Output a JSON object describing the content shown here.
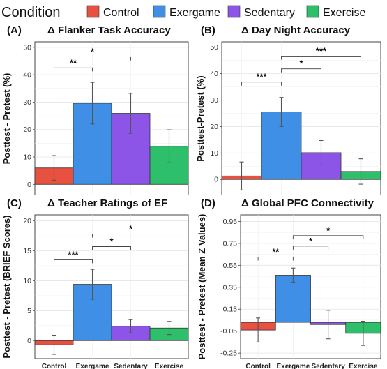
{
  "legend": {
    "title": "Condition",
    "items": [
      {
        "label": "Control",
        "color": "#e8503f"
      },
      {
        "label": "Exergame",
        "color": "#3f8fe6"
      },
      {
        "label": "Sedentary",
        "color": "#8d54e8"
      },
      {
        "label": "Exercise",
        "color": "#2dbf6a"
      }
    ]
  },
  "chart_data": [
    {
      "type": "bar",
      "panel_label": "(A)",
      "title": "Δ Flanker Task Accuracy",
      "ylabel": "Posttest - Pretest (%)",
      "xlabel": "",
      "categories": [
        "Control",
        "Exergame",
        "Sedentary",
        "Exercise"
      ],
      "show_xticks": false,
      "values": [
        6,
        29.6,
        25.9,
        13.9
      ],
      "errors": [
        4.5,
        7.6,
        7.3,
        6
      ],
      "ylim": [
        -4,
        52
      ],
      "yticks": [
        0,
        10,
        20,
        30,
        40,
        50
      ],
      "ytick_labels": [
        "0",
        "10",
        "20",
        "30",
        "40",
        "50"
      ],
      "brackets": [
        {
          "from": 0,
          "to": 1,
          "label": "**",
          "y": 42.5
        },
        {
          "from": 0,
          "to": 2,
          "label": "*",
          "y": 46.5
        }
      ]
    },
    {
      "type": "bar",
      "panel_label": "(B)",
      "title": "Δ Day Night Accuracy",
      "ylabel": "Posttest-Pretest (%)",
      "xlabel": "",
      "categories": [
        "Control",
        "Exergame",
        "Sedentary",
        "Exercise"
      ],
      "show_xticks": false,
      "values": [
        1.3,
        25.5,
        10.1,
        3
      ],
      "errors": [
        5.3,
        5.5,
        4.6,
        4.8
      ],
      "ylim": [
        -6,
        52
      ],
      "yticks": [
        0,
        10,
        20,
        30,
        40,
        50
      ],
      "ytick_labels": [
        "0",
        "10",
        "20",
        "30",
        "40",
        "50"
      ],
      "brackets": [
        {
          "from": 0,
          "to": 1,
          "label": "***",
          "y": 36.8
        },
        {
          "from": 1,
          "to": 2,
          "label": "*",
          "y": 41.8
        },
        {
          "from": 1,
          "to": 3,
          "label": "***",
          "y": 46.6
        }
      ]
    },
    {
      "type": "bar",
      "panel_label": "(C)",
      "title": "Δ Teacher Ratings of EF",
      "ylabel": "Posttest - Pretest (BRIEF Scores)",
      "xlabel": "",
      "categories": [
        "Control",
        "Exergame",
        "Sedentary",
        "Exercise"
      ],
      "show_xticks": true,
      "values": [
        -0.7,
        9.4,
        2.4,
        2.1
      ],
      "errors": [
        1.6,
        2.5,
        1.1,
        1.1
      ],
      "ylim": [
        -3,
        21
      ],
      "yticks": [
        0,
        5,
        10,
        15,
        20
      ],
      "ytick_labels": [
        "0",
        "5",
        "10",
        "15",
        "20"
      ],
      "brackets": [
        {
          "from": 0,
          "to": 1,
          "label": "***",
          "y": 13.5
        },
        {
          "from": 1,
          "to": 2,
          "label": "*",
          "y": 15.7
        },
        {
          "from": 1,
          "to": 3,
          "label": "*",
          "y": 17.8
        }
      ]
    },
    {
      "type": "bar",
      "panel_label": "(D)",
      "title": "Δ Global PFC Connectivity",
      "ylabel": "Posttest - Pretest (Mean Z Values)",
      "xlabel": "",
      "categories": [
        "Control",
        "Exergame",
        "Sedentary",
        "Exercise"
      ],
      "show_xticks": true,
      "values": [
        -0.04,
        0.46,
        0.01,
        -0.07
      ],
      "errors": [
        0.11,
        0.065,
        0.13,
        0.11
      ],
      "baseline": 0.03,
      "ylim": [
        -0.3,
        1.01
      ],
      "yticks": [
        -0.25,
        -0.05,
        0.15,
        0.35,
        0.55,
        0.75,
        0.95
      ],
      "ytick_labels": [
        "-0.25",
        "-0.05",
        "0.15",
        "0.35",
        "0.55",
        "0.75",
        "0.95"
      ],
      "brackets": [
        {
          "from": 0,
          "to": 1,
          "label": "**",
          "y": 0.625
        },
        {
          "from": 1,
          "to": 2,
          "label": "*",
          "y": 0.725
        },
        {
          "from": 1,
          "to": 3,
          "label": "*",
          "y": 0.82
        }
      ]
    }
  ]
}
